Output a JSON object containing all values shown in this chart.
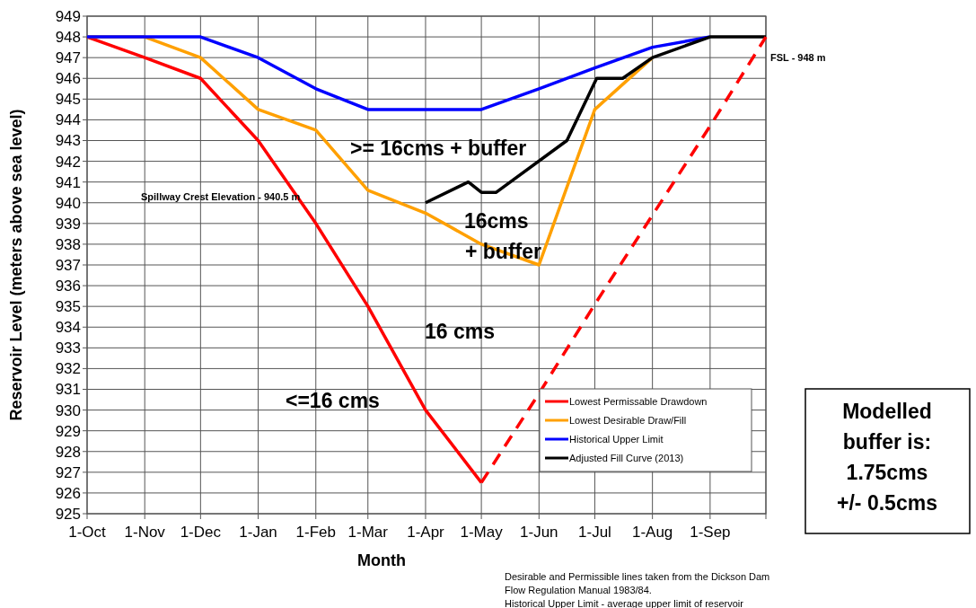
{
  "chart_data": {
    "type": "line",
    "xlabel": "Month",
    "ylabel": "Reservoir Level (meters above sea level)",
    "xlim": [
      "2012-10-01",
      "2013-10-01"
    ],
    "xticks": [
      {
        "value": "2012-10-01",
        "label": "1-Oct"
      },
      {
        "value": "2012-11-01",
        "label": "1-Nov"
      },
      {
        "value": "2012-12-01",
        "label": "1-Dec"
      },
      {
        "value": "2013-01-01",
        "label": "1-Jan"
      },
      {
        "value": "2013-02-01",
        "label": "1-Feb"
      },
      {
        "value": "2013-03-01",
        "label": "1-Mar"
      },
      {
        "value": "2013-04-01",
        "label": "1-Apr"
      },
      {
        "value": "2013-05-01",
        "label": "1-May"
      },
      {
        "value": "2013-06-01",
        "label": "1-Jun"
      },
      {
        "value": "2013-07-01",
        "label": "1-Jul"
      },
      {
        "value": "2013-08-01",
        "label": "1-Aug"
      },
      {
        "value": "2013-09-01",
        "label": "1-Sep"
      },
      {
        "value": "2013-10-01",
        "label": null
      }
    ],
    "ylim": [
      925,
      949
    ],
    "yticks": [
      925,
      926,
      927,
      928,
      929,
      930,
      931,
      932,
      933,
      934,
      935,
      936,
      937,
      938,
      939,
      940,
      941,
      942,
      943,
      944,
      945,
      946,
      947,
      948,
      949
    ],
    "grid": true,
    "legend": "bottom right",
    "series": [
      {
        "name": "Lowest Permissable Drawdown",
        "color": "#ff0000",
        "x": [
          "2012-10-01",
          "2012-11-01",
          "2012-12-01",
          "2013-01-01",
          "2013-02-01",
          "2013-03-01",
          "2013-04-01",
          "2013-05-01"
        ],
        "values": [
          948,
          947,
          946,
          943,
          939,
          935,
          930,
          926.5
        ]
      },
      {
        "name": "Lowest Desirable Draw/Fill",
        "color": "#ffa000",
        "x": [
          "2012-10-01",
          "2012-11-01",
          "2012-12-01",
          "2013-01-01",
          "2013-02-01",
          "2013-03-01",
          "2013-04-01",
          "2013-05-01",
          "2013-06-01",
          "2013-07-01",
          "2013-08-01"
        ],
        "values": [
          948,
          948,
          947,
          944.5,
          943.5,
          940.6,
          939.5,
          938,
          937,
          944.5,
          947
        ]
      },
      {
        "name": "Historical Upper Limit",
        "color": "#0000ff",
        "x": [
          "2012-10-01",
          "2012-11-01",
          "2012-12-01",
          "2013-01-01",
          "2013-02-01",
          "2013-03-01",
          "2013-04-01",
          "2013-05-01",
          "2013-06-01",
          "2013-07-01",
          "2013-08-01",
          "2013-09-01"
        ],
        "values": [
          948,
          948,
          948,
          947,
          945.5,
          944.5,
          944.5,
          944.5,
          945.5,
          946.5,
          947.5,
          948
        ]
      },
      {
        "name": "Adjusted Fill Curve (2013)",
        "color": "#000000",
        "x": [
          "2013-04-01",
          "2013-04-24",
          "2013-05-01",
          "2013-05-09",
          "2013-06-16",
          "2013-07-02",
          "2013-07-16",
          "2013-08-01",
          "2013-09-01",
          "2013-10-01"
        ],
        "values": [
          940,
          941,
          940.5,
          940.5,
          943,
          946,
          946,
          947,
          948,
          948
        ]
      },
      {
        "color": "#ff0000",
        "line_style": "dashed",
        "x": [
          "2013-05-01",
          "2013-06-01",
          "2013-07-01",
          "2013-08-01",
          "2013-09-01",
          "2013-10-01"
        ],
        "values": [
          926.5,
          930.8,
          935.1,
          939.4,
          943.7,
          948
        ]
      }
    ],
    "annotations": [
      ">= 16cms + buffer",
      "16cms",
      "+ buffer",
      "16 cms",
      "<=16 cms",
      "Spillway  Crest Elevation  - 940.5 m",
      "FSL - 948 m",
      "Modelled buffer is: 1.75cms +/- 0.5cms",
      "Desirable and  Permissible lines taken from the Dickson Dam",
      "Flow Regulation Manual  1983/84.",
      "Historical Upper Limit - average upper limit of reservoir"
    ]
  }
}
